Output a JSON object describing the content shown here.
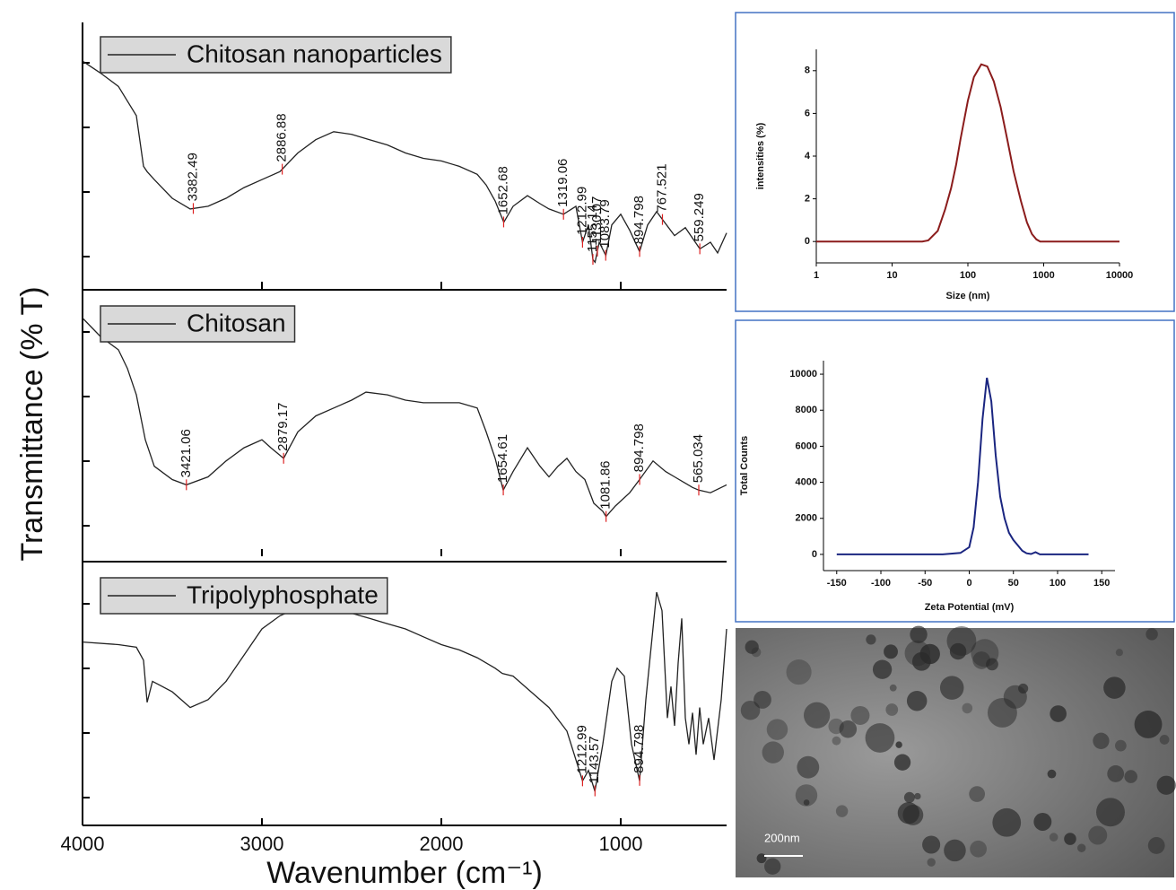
{
  "chart_data": [
    {
      "type": "line",
      "x_label": "Wavenumber (cm⁻¹)",
      "y_label": "Transmittance (% T)",
      "xlim": [
        4000,
        410
      ],
      "xticks": [
        4000,
        3000,
        2000,
        1000
      ],
      "ylim": [
        0,
        100
      ],
      "panels": [
        {
          "name": "Chitosan nanoparticles",
          "color": "#222222",
          "x": [
            4000,
            3900,
            3800,
            3700,
            3660,
            3640,
            3600,
            3500,
            3400,
            3300,
            3200,
            3100,
            3000,
            2900,
            2800,
            2700,
            2600,
            2500,
            2400,
            2300,
            2200,
            2100,
            2000,
            1900,
            1800,
            1750,
            1700,
            1652,
            1600,
            1520,
            1450,
            1400,
            1319,
            1250,
            1213,
            1180,
            1155,
            1143,
            1120,
            1083,
            1050,
            1000,
            950,
            895,
            850,
            800,
            767,
            700,
            640,
            559,
            500,
            460,
            410
          ],
          "values": [
            85.5,
            81,
            76,
            65,
            46,
            44,
            41,
            34,
            30,
            31,
            34,
            38,
            41,
            44,
            51,
            56,
            59,
            58,
            56,
            54,
            51,
            49,
            48,
            46,
            43,
            39,
            33,
            25,
            31,
            35,
            32,
            30,
            28,
            31,
            17.5,
            24,
            11,
            10,
            17.5,
            12.5,
            24,
            28,
            22,
            14,
            24,
            29,
            26,
            20,
            23,
            15,
            17.5,
            13.5,
            21
          ],
          "peaks": [
            3382.49,
            2886.88,
            1652.68,
            1319.06,
            1212.99,
            1155.14,
            1130.07,
            1083.79,
            894.798,
            767.521,
            559.249
          ]
        },
        {
          "name": "Chitosan",
          "color": "#222222",
          "x": [
            4000,
            3900,
            3800,
            3750,
            3700,
            3650,
            3600,
            3500,
            3421,
            3300,
            3200,
            3100,
            3000,
            2950,
            2879,
            2800,
            2700,
            2600,
            2500,
            2420,
            2300,
            2200,
            2100,
            2000,
            1900,
            1800,
            1750,
            1700,
            1655,
            1600,
            1520,
            1450,
            1400,
            1350,
            1300,
            1250,
            1200,
            1150,
            1100,
            1082,
            1030,
            950,
            895,
            820,
            750,
            700,
            600,
            565,
            500,
            410
          ],
          "values": [
            90,
            83,
            78,
            71,
            61,
            44,
            34,
            29,
            27,
            30,
            36,
            41,
            44,
            41,
            37,
            47,
            53,
            56,
            59,
            62,
            61,
            59,
            58,
            58,
            58,
            56,
            47,
            37,
            25,
            32,
            41,
            34,
            30,
            34,
            37,
            32,
            29,
            20,
            17,
            15,
            19,
            24,
            29,
            36,
            32,
            30,
            26,
            25,
            24,
            27
          ],
          "peaks": [
            3421.06,
            2879.17,
            1654.61,
            1081.86,
            894.798,
            565.034
          ]
        },
        {
          "name": "Tripolyphosphate",
          "color": "#222222",
          "x": [
            4000,
            3800,
            3700,
            3660,
            3640,
            3610,
            3500,
            3400,
            3300,
            3200,
            3100,
            3000,
            2900,
            2800,
            2700,
            2600,
            2500,
            2400,
            2300,
            2200,
            2100,
            2000,
            1900,
            1800,
            1700,
            1660,
            1600,
            1500,
            1400,
            1300,
            1213,
            1180,
            1144,
            1100,
            1050,
            1020,
            980,
            940,
            895,
            860,
            800,
            770,
            740,
            720,
            700,
            680,
            660,
            640,
            620,
            600,
            580,
            560,
            540,
            510,
            480,
            440,
            410
          ],
          "values": [
            70,
            69,
            68,
            63,
            47,
            55,
            51,
            45,
            48,
            55,
            65,
            75,
            80,
            83,
            84,
            83,
            81,
            79,
            77,
            75,
            72,
            69,
            67,
            64,
            60,
            58,
            57,
            51,
            45,
            36,
            17,
            21,
            13,
            31,
            55,
            60,
            57,
            31,
            17,
            48,
            89,
            82,
            41,
            53,
            38,
            62,
            79,
            41,
            31,
            43,
            27,
            45,
            31,
            41,
            25,
            48,
            75
          ],
          "peaks": [
            1212.99,
            1143.57,
            894.798
          ]
        }
      ]
    },
    {
      "type": "line",
      "log_x": true,
      "x_label": "Size (nm)",
      "y_label": "intensities (%)",
      "xlim": [
        1,
        10000
      ],
      "xticks": [
        1,
        10,
        100,
        1000,
        10000
      ],
      "ylim": [
        -1,
        9
      ],
      "yticks": [
        0,
        2,
        4,
        6,
        8
      ],
      "series": [
        {
          "color": "#8b1c1c",
          "x": [
            1,
            10,
            25,
            30,
            40,
            50,
            60,
            70,
            80,
            100,
            120,
            150,
            180,
            220,
            270,
            330,
            400,
            500,
            600,
            700,
            800,
            900,
            1000,
            10000
          ],
          "values": [
            0,
            0,
            0,
            0.05,
            0.5,
            1.5,
            2.5,
            3.6,
            4.8,
            6.6,
            7.7,
            8.3,
            8.2,
            7.5,
            6.3,
            4.8,
            3.3,
            1.9,
            0.9,
            0.35,
            0.1,
            0,
            0,
            0
          ]
        }
      ]
    },
    {
      "type": "line",
      "x_label": "Zeta Potential (mV)",
      "y_label": "Total Counts",
      "xlim": [
        -165,
        165
      ],
      "xticks": [
        -150,
        -100,
        -50,
        0,
        50,
        100,
        150
      ],
      "ylim": [
        -900,
        10750
      ],
      "yticks": [
        0,
        2000,
        4000,
        6000,
        8000,
        10000
      ],
      "series": [
        {
          "color": "#1a2580",
          "x": [
            -150,
            -30,
            -10,
            0,
            5,
            10,
            15,
            20,
            25,
            30,
            35,
            40,
            45,
            50,
            55,
            60,
            65,
            70,
            75,
            80,
            135
          ],
          "values": [
            0,
            0,
            80,
            400,
            1500,
            4000,
            7500,
            9800,
            8500,
            5500,
            3200,
            2000,
            1200,
            800,
            500,
            200,
            60,
            20,
            120,
            0,
            0
          ]
        }
      ]
    }
  ],
  "tem_image": {
    "scale_label": "200nm"
  }
}
